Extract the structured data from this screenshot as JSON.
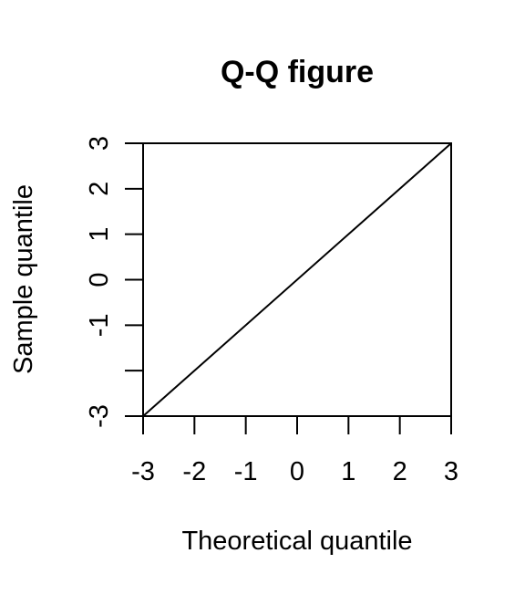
{
  "chart_data": {
    "type": "line",
    "title": "Q-Q figure",
    "xlabel": "Theoretical quantile",
    "ylabel": "Sample quantile",
    "xlim": [
      -3,
      3
    ],
    "ylim": [
      -3,
      3
    ],
    "x_ticks": [
      -3,
      -2,
      -1,
      0,
      1,
      2,
      3
    ],
    "x_tick_labels": [
      "-3",
      "-2",
      "-1",
      "0",
      "1",
      "2",
      "3"
    ],
    "y_ticks": [
      -3,
      -2,
      -1,
      0,
      1,
      2,
      3
    ],
    "y_tick_labels": [
      "-3",
      "",
      "-1",
      "0",
      "1",
      "2",
      "3"
    ],
    "grid": false,
    "legend": "none",
    "series": [
      {
        "x": [
          -3,
          3
        ],
        "y": [
          -3,
          3
        ]
      }
    ]
  }
}
